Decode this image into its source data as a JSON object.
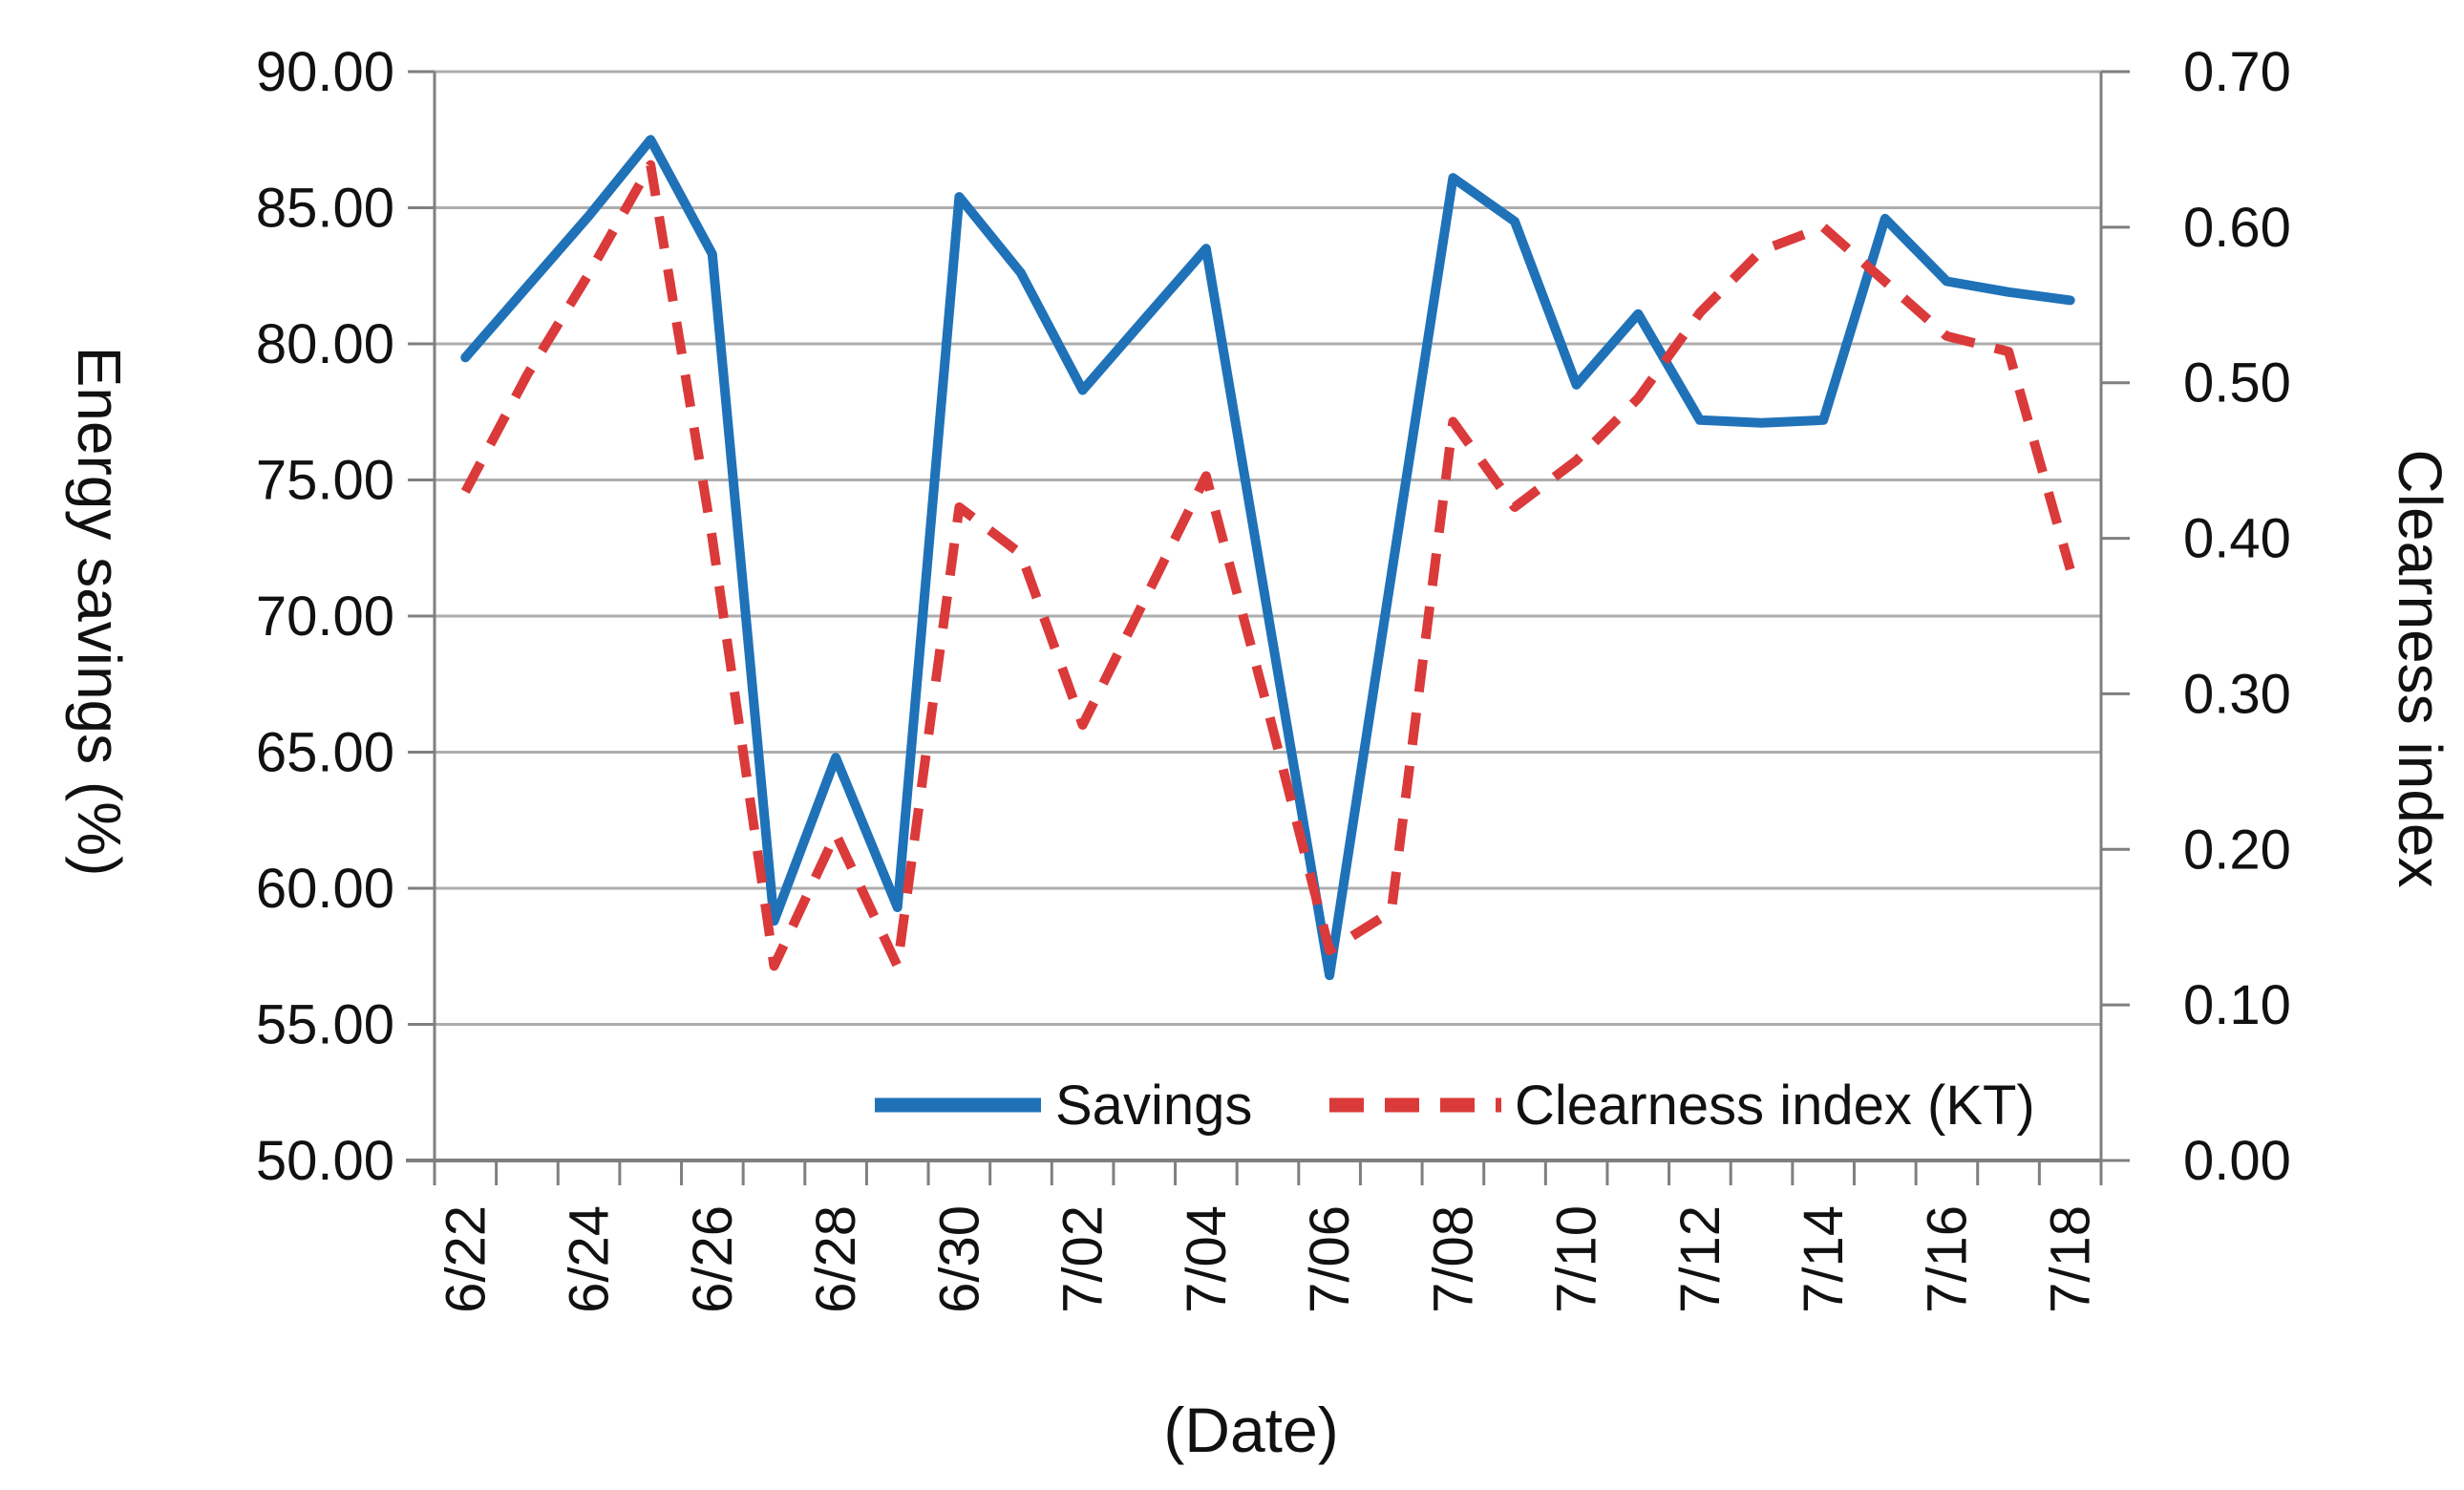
{
  "colors": {
    "savings_line": "#1F72B8",
    "clearness_line": "#DB3A3A",
    "gridline": "#ADADAD",
    "axis_line": "#7F7F7F",
    "text": "#111111"
  },
  "chart_data": {
    "type": "line",
    "x": [
      "6/22",
      "6/23",
      "6/24",
      "6/25",
      "6/26",
      "6/27",
      "6/28",
      "6/29",
      "6/30",
      "7/01",
      "7/02",
      "7/03",
      "7/04",
      "7/05",
      "7/06",
      "7/07",
      "7/08",
      "7/09",
      "7/10",
      "7/11",
      "7/12",
      "7/13",
      "7/14",
      "7/15",
      "7/16",
      "7/17",
      "7/18"
    ],
    "series": [
      {
        "name": "Savings",
        "axis": "left",
        "style": "solid",
        "values": [
          79.5,
          82.1,
          84.7,
          87.5,
          83.3,
          58.8,
          64.8,
          59.3,
          85.4,
          82.6,
          78.3,
          80.9,
          83.5,
          70.1,
          56.8,
          71.5,
          86.1,
          84.5,
          78.5,
          81.1,
          77.2,
          77.1,
          77.2,
          84.6,
          82.3,
          81.9,
          81.6
        ]
      },
      {
        "name": "Clearness index (KT)",
        "axis": "right",
        "style": "dashed",
        "values": [
          0.43,
          0.505,
          0.57,
          0.64,
          0.4,
          0.125,
          0.21,
          0.125,
          0.42,
          0.39,
          0.28,
          0.36,
          0.44,
          0.29,
          0.135,
          0.16,
          0.475,
          0.42,
          0.45,
          0.49,
          0.545,
          0.585,
          0.6,
          0.565,
          0.53,
          0.52,
          0.38
        ]
      }
    ],
    "left_axis": {
      "title": "Energy savings (%)",
      "min": 50,
      "max": 90,
      "step": 5,
      "tick_labels": [
        "90.00",
        "85.00",
        "80.00",
        "75.00",
        "70.00",
        "65.00",
        "60.00",
        "55.00",
        "50.00"
      ]
    },
    "right_axis": {
      "title": "Clearness index",
      "min": 0.0,
      "max": 0.7,
      "step": 0.1,
      "tick_labels": [
        "0.70",
        "0.60",
        "0.50",
        "0.40",
        "0.30",
        "0.20",
        "0.10",
        "0.00"
      ]
    },
    "x_axis": {
      "title": "(Date)",
      "tick_labels": [
        "6/22",
        "6/24",
        "6/26",
        "6/28",
        "6/30",
        "7/02",
        "7/04",
        "7/06",
        "7/08",
        "7/10",
        "7/12",
        "7/14",
        "7/16",
        "7/18"
      ]
    },
    "legend": {
      "items": [
        {
          "label": "Savings",
          "style": "solid"
        },
        {
          "label": "Clearness index (KT)",
          "style": "dashed"
        }
      ],
      "position": "bottom-inside"
    },
    "grid": "horizontal-only"
  }
}
